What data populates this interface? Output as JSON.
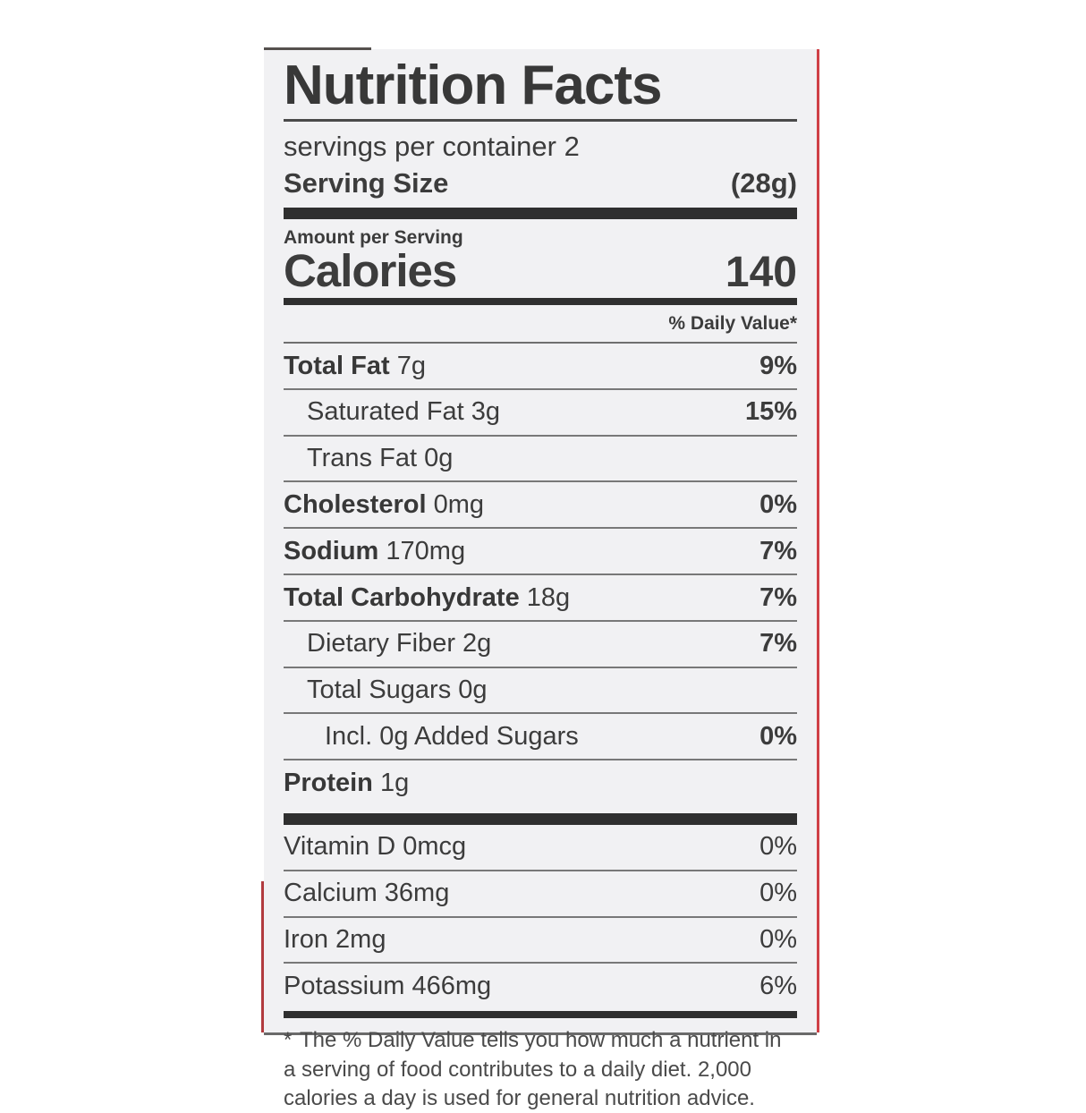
{
  "label": {
    "title": "Nutrition Facts",
    "servings_per_container": "servings per container 2",
    "serving_size_label": "Serving Size",
    "serving_size_value": "(28g)",
    "amount_per_serving": "Amount per Serving",
    "calories_label": "Calories",
    "calories_value": "140",
    "daily_value_header": "% Daily Value*",
    "nutrients": [
      {
        "name": "Total Fat",
        "amount": "7g",
        "dv": "9%",
        "bold": true,
        "indent": 0
      },
      {
        "name": "Saturated Fat",
        "amount": "3g",
        "dv": "15%",
        "bold": false,
        "indent": 1
      },
      {
        "name": "Trans Fat",
        "amount": "0g",
        "dv": "",
        "bold": false,
        "indent": 1
      },
      {
        "name": "Cholesterol",
        "amount": "0mg",
        "dv": "0%",
        "bold": true,
        "indent": 0
      },
      {
        "name": "Sodium",
        "amount": "170mg",
        "dv": "7%",
        "bold": true,
        "indent": 0
      },
      {
        "name": "Total Carbohydrate",
        "amount": "18g",
        "dv": "7%",
        "bold": true,
        "indent": 0
      },
      {
        "name": "Dietary Fiber",
        "amount": "2g",
        "dv": "7%",
        "bold": false,
        "indent": 1
      },
      {
        "name": "Total Sugars",
        "amount": "0g",
        "dv": "",
        "bold": false,
        "indent": 1
      },
      {
        "name": "Incl. 0g Added Sugars",
        "amount": "",
        "dv": "0%",
        "bold": false,
        "indent": 2
      },
      {
        "name": "Protein",
        "amount": "1g",
        "dv": "",
        "bold": true,
        "indent": 0
      }
    ],
    "micronutrients": [
      {
        "name": "Vitamin D 0mcg",
        "dv": "0%"
      },
      {
        "name": "Calcium 36mg",
        "dv": "0%"
      },
      {
        "name": "Iron 2mg",
        "dv": "0%"
      },
      {
        "name": "Potassium 466mg",
        "dv": "6%"
      }
    ],
    "footnote_star": "*",
    "footnote": "The % Daily Value tells you how much a nutrient in a serving of food contributes to a daily diet. 2,000 calories a day is used for general nutrition advice."
  },
  "colors": {
    "label_background": "#f1f1f3",
    "text": "#3c3c3c",
    "divider_bars": "#2f2f2f",
    "package_edge_red": "#cf4046"
  }
}
